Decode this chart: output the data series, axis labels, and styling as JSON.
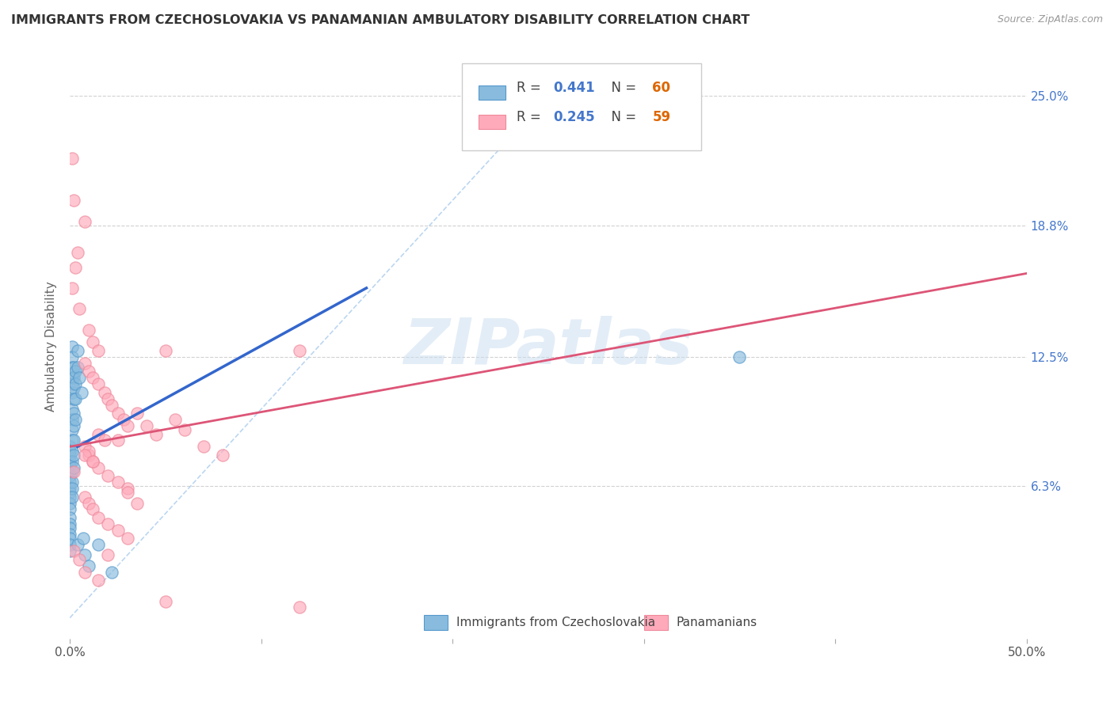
{
  "title": "IMMIGRANTS FROM CZECHOSLOVAKIA VS PANAMANIAN AMBULATORY DISABILITY CORRELATION CHART",
  "source": "Source: ZipAtlas.com",
  "ylabel": "Ambulatory Disability",
  "ytick_vals": [
    0.063,
    0.125,
    0.188,
    0.25
  ],
  "ytick_labels": [
    "6.3%",
    "12.5%",
    "18.8%",
    "25.0%"
  ],
  "xlim": [
    0.0,
    0.5
  ],
  "ylim": [
    -0.01,
    0.27
  ],
  "legend_blue_r": "0.441",
  "legend_blue_n": "60",
  "legend_pink_r": "0.245",
  "legend_pink_n": "59",
  "legend_labels": [
    "Immigrants from Czechoslovakia",
    "Panamanians"
  ],
  "watermark": "ZIPatlas",
  "blue_color": "#88bbdd",
  "blue_edge": "#5599cc",
  "pink_color": "#ffaabb",
  "pink_edge": "#ee8899",
  "blue_line_color": "#3366cc",
  "pink_line_color": "#dd5577",
  "diag_line_color": "#aaccee",
  "blue_line": [
    [
      0.004,
      0.082
    ],
    [
      0.155,
      0.158
    ]
  ],
  "pink_line": [
    [
      0.0,
      0.082
    ],
    [
      0.5,
      0.165
    ]
  ],
  "diag_line": [
    [
      0.0,
      0.0
    ],
    [
      0.265,
      0.265
    ]
  ],
  "blue_scatter": [
    [
      0.0,
      0.082
    ],
    [
      0.0,
      0.08
    ],
    [
      0.0,
      0.078
    ],
    [
      0.0,
      0.075
    ],
    [
      0.0,
      0.073
    ],
    [
      0.0,
      0.07
    ],
    [
      0.0,
      0.068
    ],
    [
      0.0,
      0.065
    ],
    [
      0.0,
      0.062
    ],
    [
      0.0,
      0.06
    ],
    [
      0.0,
      0.058
    ],
    [
      0.0,
      0.055
    ],
    [
      0.0,
      0.052
    ],
    [
      0.0,
      0.048
    ],
    [
      0.0,
      0.045
    ],
    [
      0.0,
      0.043
    ],
    [
      0.0,
      0.04
    ],
    [
      0.0,
      0.038
    ],
    [
      0.0,
      0.035
    ],
    [
      0.0,
      0.032
    ],
    [
      0.001,
      0.13
    ],
    [
      0.001,
      0.125
    ],
    [
      0.001,
      0.12
    ],
    [
      0.001,
      0.115
    ],
    [
      0.001,
      0.112
    ],
    [
      0.001,
      0.108
    ],
    [
      0.001,
      0.1
    ],
    [
      0.001,
      0.095
    ],
    [
      0.001,
      0.09
    ],
    [
      0.001,
      0.085
    ],
    [
      0.001,
      0.08
    ],
    [
      0.001,
      0.075
    ],
    [
      0.001,
      0.07
    ],
    [
      0.001,
      0.065
    ],
    [
      0.001,
      0.062
    ],
    [
      0.001,
      0.058
    ],
    [
      0.002,
      0.12
    ],
    [
      0.002,
      0.115
    ],
    [
      0.002,
      0.11
    ],
    [
      0.002,
      0.105
    ],
    [
      0.002,
      0.098
    ],
    [
      0.002,
      0.092
    ],
    [
      0.002,
      0.085
    ],
    [
      0.002,
      0.078
    ],
    [
      0.002,
      0.072
    ],
    [
      0.003,
      0.118
    ],
    [
      0.003,
      0.112
    ],
    [
      0.003,
      0.105
    ],
    [
      0.003,
      0.095
    ],
    [
      0.004,
      0.128
    ],
    [
      0.004,
      0.12
    ],
    [
      0.004,
      0.035
    ],
    [
      0.005,
      0.115
    ],
    [
      0.006,
      0.108
    ],
    [
      0.007,
      0.038
    ],
    [
      0.008,
      0.03
    ],
    [
      0.01,
      0.025
    ],
    [
      0.015,
      0.035
    ],
    [
      0.35,
      0.125
    ],
    [
      0.022,
      0.022
    ]
  ],
  "pink_scatter": [
    [
      0.001,
      0.22
    ],
    [
      0.002,
      0.2
    ],
    [
      0.008,
      0.19
    ],
    [
      0.004,
      0.175
    ],
    [
      0.003,
      0.168
    ],
    [
      0.001,
      0.158
    ],
    [
      0.005,
      0.148
    ],
    [
      0.01,
      0.138
    ],
    [
      0.012,
      0.132
    ],
    [
      0.015,
      0.128
    ],
    [
      0.008,
      0.122
    ],
    [
      0.01,
      0.118
    ],
    [
      0.012,
      0.115
    ],
    [
      0.015,
      0.112
    ],
    [
      0.018,
      0.108
    ],
    [
      0.02,
      0.105
    ],
    [
      0.022,
      0.102
    ],
    [
      0.025,
      0.098
    ],
    [
      0.028,
      0.095
    ],
    [
      0.03,
      0.092
    ],
    [
      0.015,
      0.088
    ],
    [
      0.018,
      0.085
    ],
    [
      0.008,
      0.082
    ],
    [
      0.01,
      0.078
    ],
    [
      0.012,
      0.075
    ],
    [
      0.015,
      0.072
    ],
    [
      0.02,
      0.068
    ],
    [
      0.025,
      0.065
    ],
    [
      0.03,
      0.062
    ],
    [
      0.008,
      0.058
    ],
    [
      0.01,
      0.055
    ],
    [
      0.012,
      0.052
    ],
    [
      0.015,
      0.048
    ],
    [
      0.02,
      0.045
    ],
    [
      0.025,
      0.042
    ],
    [
      0.03,
      0.038
    ],
    [
      0.002,
      0.032
    ],
    [
      0.005,
      0.028
    ],
    [
      0.008,
      0.022
    ],
    [
      0.015,
      0.018
    ],
    [
      0.05,
      0.128
    ],
    [
      0.002,
      0.07
    ],
    [
      0.03,
      0.06
    ],
    [
      0.035,
      0.055
    ],
    [
      0.01,
      0.08
    ],
    [
      0.008,
      0.078
    ],
    [
      0.012,
      0.075
    ],
    [
      0.05,
      0.008
    ],
    [
      0.02,
      0.03
    ],
    [
      0.025,
      0.085
    ],
    [
      0.035,
      0.098
    ],
    [
      0.04,
      0.092
    ],
    [
      0.045,
      0.088
    ],
    [
      0.055,
      0.095
    ],
    [
      0.06,
      0.09
    ],
    [
      0.07,
      0.082
    ],
    [
      0.08,
      0.078
    ],
    [
      0.12,
      0.128
    ],
    [
      0.12,
      0.005
    ]
  ]
}
